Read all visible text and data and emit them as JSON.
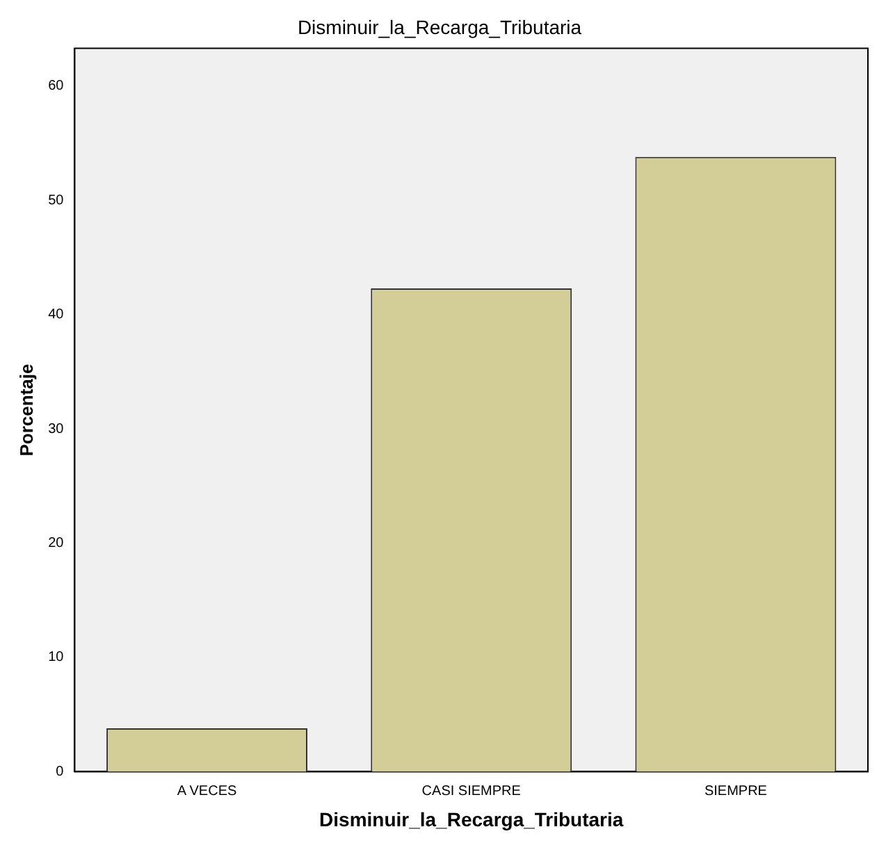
{
  "chart_data": {
    "type": "bar",
    "title": "Disminuir_la_Recarga_Tributaria",
    "xlabel": "Disminuir_la_Recarga_Tributaria",
    "ylabel": "Porcentaje",
    "categories": [
      "A VECES",
      "CASI SIEMPRE",
      "SIEMPRE"
    ],
    "values": [
      3.8,
      42.3,
      53.8
    ],
    "color": "#d3ce97",
    "ylim": [
      0,
      63.3
    ],
    "yticks": [
      0,
      10,
      20,
      30,
      40,
      50,
      60
    ],
    "grid": false,
    "legend": false
  }
}
